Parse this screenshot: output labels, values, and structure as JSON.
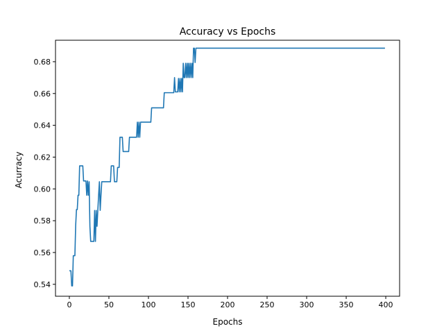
{
  "chart_data": {
    "type": "line",
    "title": "Accuracy vs Epochs",
    "xlabel": "Epochs",
    "ylabel": "Acurracy",
    "xlim": [
      -17.5,
      417.5
    ],
    "ylim": [
      0.5325,
      0.6935
    ],
    "x_ticks": [
      0,
      50,
      100,
      150,
      200,
      250,
      300,
      350,
      400
    ],
    "y_ticks": [
      0.54,
      0.56,
      0.58,
      0.6,
      0.62,
      0.64,
      0.66,
      0.68
    ],
    "x_tick_labels": [
      "0",
      "50",
      "100",
      "150",
      "200",
      "250",
      "300",
      "350",
      "400"
    ],
    "y_tick_labels": [
      "0.54",
      "0.56",
      "0.58",
      "0.60",
      "0.62",
      "0.64",
      "0.66",
      "0.68"
    ],
    "grid": false,
    "series": [
      {
        "color": "#1f77b4",
        "points": [
          [
            0,
            0.5485
          ],
          [
            2,
            0.5485
          ],
          [
            3,
            0.539
          ],
          [
            4,
            0.539
          ],
          [
            5,
            0.558
          ],
          [
            7,
            0.558
          ],
          [
            8,
            0.577
          ],
          [
            9,
            0.587
          ],
          [
            10,
            0.587
          ],
          [
            11,
            0.596
          ],
          [
            12,
            0.596
          ],
          [
            13,
            0.6145
          ],
          [
            17,
            0.6145
          ],
          [
            18,
            0.605
          ],
          [
            21,
            0.605
          ],
          [
            22,
            0.596
          ],
          [
            23,
            0.605
          ],
          [
            24,
            0.596
          ],
          [
            25,
            0.6045
          ],
          [
            26,
            0.5765
          ],
          [
            27,
            0.567
          ],
          [
            31,
            0.567
          ],
          [
            32,
            0.5865
          ],
          [
            33,
            0.567
          ],
          [
            34,
            0.5865
          ],
          [
            35,
            0.5765
          ],
          [
            36,
            0.5865
          ],
          [
            37,
            0.596
          ],
          [
            38,
            0.6045
          ],
          [
            39,
            0.5865
          ],
          [
            40,
            0.596
          ],
          [
            41,
            0.6045
          ],
          [
            52,
            0.6045
          ],
          [
            53,
            0.6145
          ],
          [
            56,
            0.6145
          ],
          [
            57,
            0.6045
          ],
          [
            60,
            0.6045
          ],
          [
            61,
            0.6135
          ],
          [
            63,
            0.6135
          ],
          [
            64,
            0.6325
          ],
          [
            67,
            0.6325
          ],
          [
            68,
            0.6235
          ],
          [
            75,
            0.6235
          ],
          [
            76,
            0.6325
          ],
          [
            85,
            0.6325
          ],
          [
            86,
            0.642
          ],
          [
            87,
            0.6325
          ],
          [
            88,
            0.642
          ],
          [
            89,
            0.6325
          ],
          [
            90,
            0.642
          ],
          [
            103,
            0.642
          ],
          [
            104,
            0.651
          ],
          [
            119,
            0.651
          ],
          [
            120,
            0.6605
          ],
          [
            132,
            0.6605
          ],
          [
            133,
            0.67
          ],
          [
            134,
            0.661
          ],
          [
            137,
            0.661
          ],
          [
            138,
            0.6695
          ],
          [
            139,
            0.661
          ],
          [
            140,
            0.6695
          ],
          [
            141,
            0.661
          ],
          [
            142,
            0.6695
          ],
          [
            143,
            0.661
          ],
          [
            144,
            0.679
          ],
          [
            145,
            0.67
          ],
          [
            146,
            0.67
          ],
          [
            147,
            0.679
          ],
          [
            148,
            0.67
          ],
          [
            149,
            0.679
          ],
          [
            150,
            0.67
          ],
          [
            151,
            0.679
          ],
          [
            152,
            0.67
          ],
          [
            153,
            0.679
          ],
          [
            154,
            0.67
          ],
          [
            155,
            0.679
          ],
          [
            156,
            0.67
          ],
          [
            157,
            0.6885
          ],
          [
            158,
            0.6885
          ],
          [
            159,
            0.6795
          ],
          [
            160,
            0.6885
          ],
          [
            399,
            0.6885
          ]
        ]
      }
    ]
  }
}
